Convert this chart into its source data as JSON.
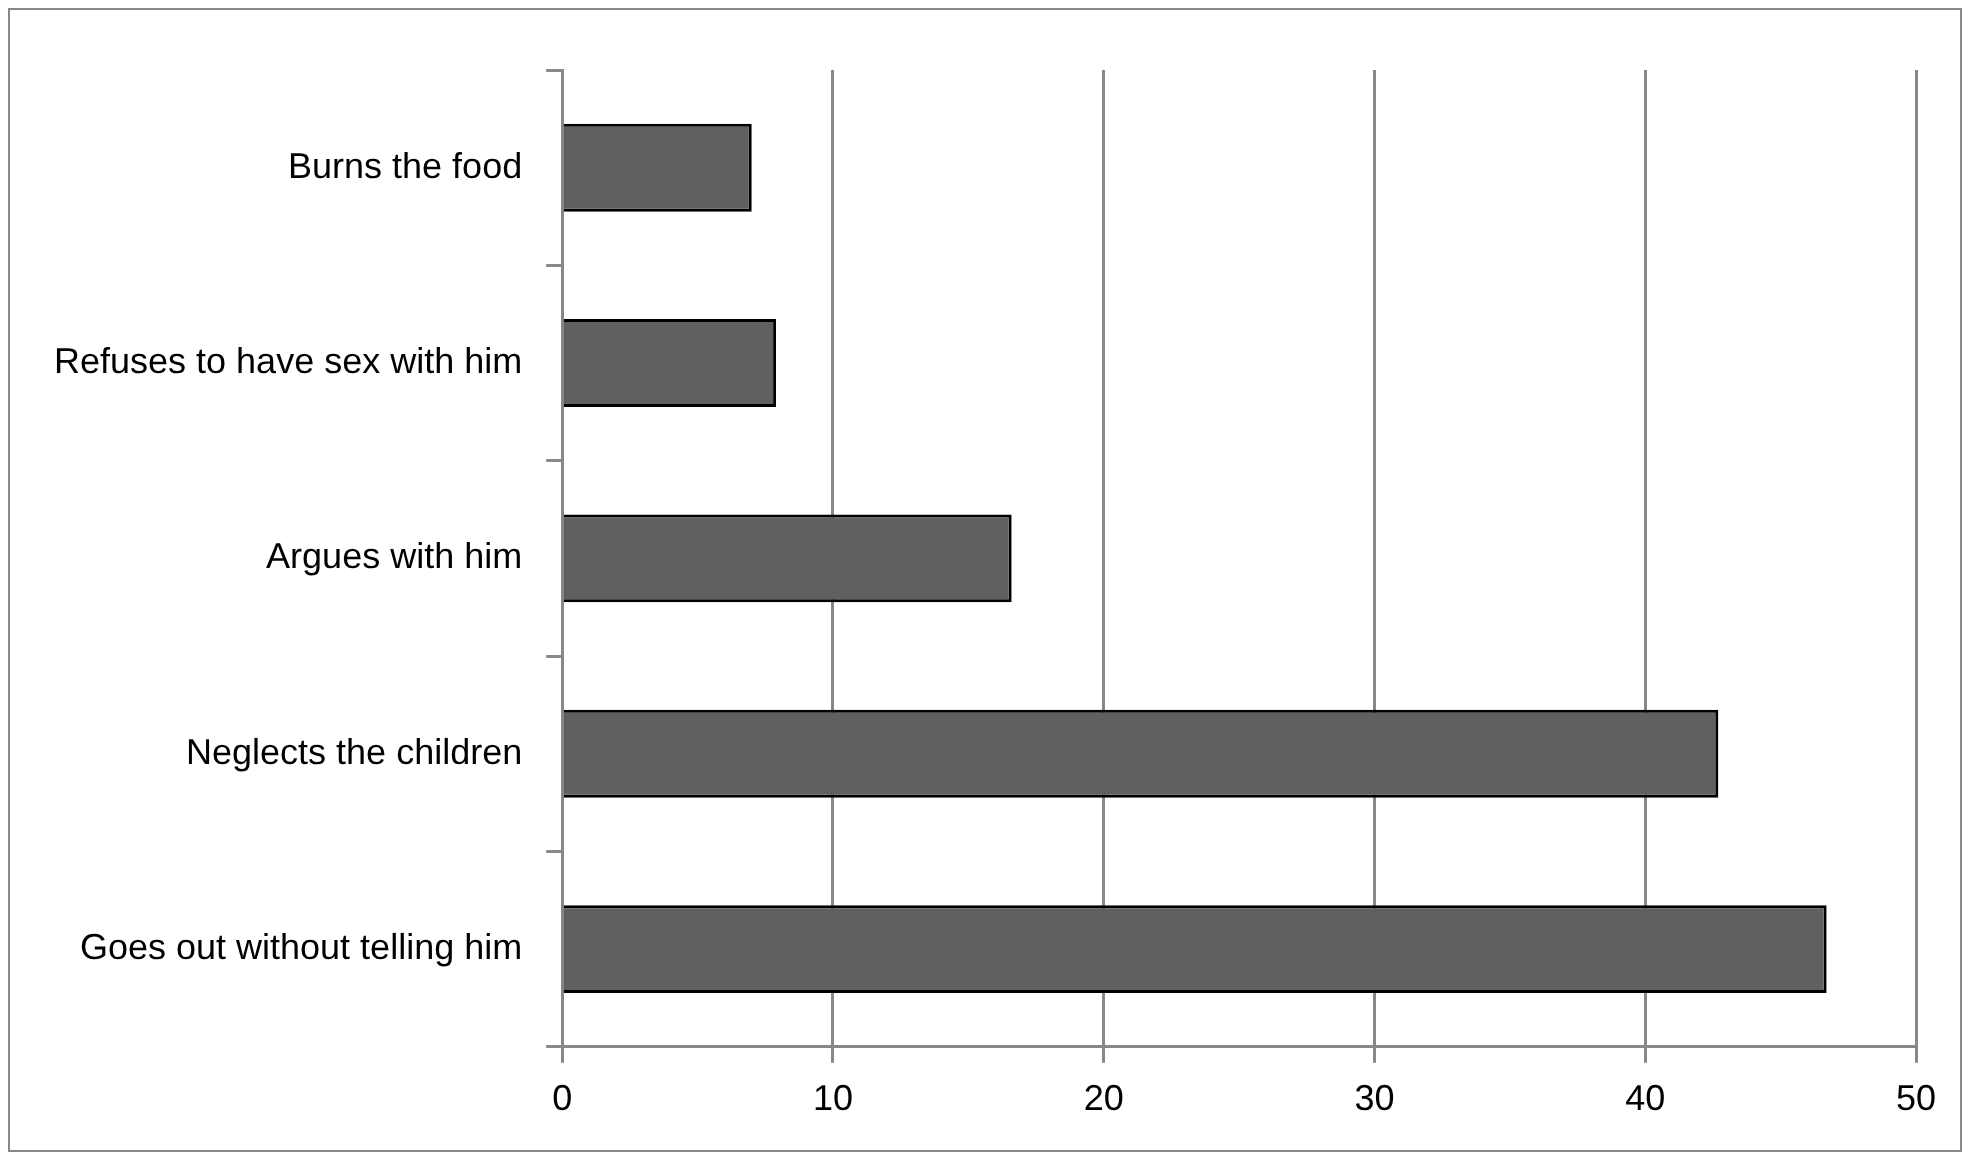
{
  "chart_data": {
    "type": "bar",
    "orientation": "horizontal",
    "categories": [
      "Burns the food",
      "Refuses to have sex with him",
      "Argues with him",
      "Neglects the children",
      "Goes out without telling him"
    ],
    "values": [
      7.0,
      7.9,
      16.6,
      42.7,
      46.7
    ],
    "color": "#606060",
    "xlim": [
      0,
      50
    ],
    "xticks": [
      0,
      10,
      20,
      30,
      40,
      50
    ],
    "grid": "x",
    "legend": false
  }
}
